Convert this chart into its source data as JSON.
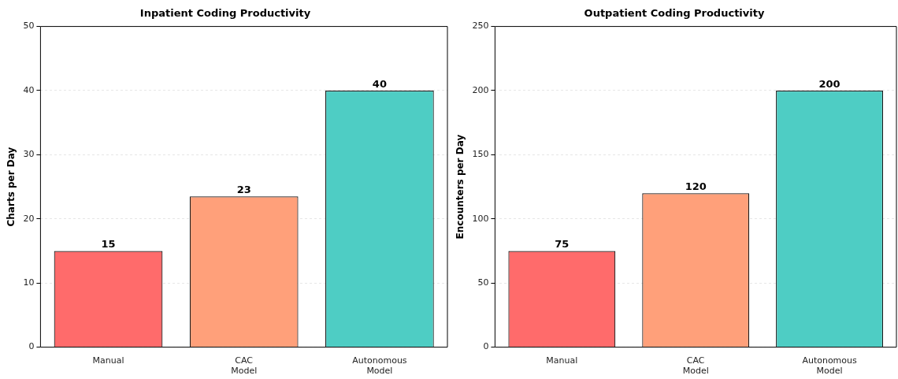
{
  "chart_data": [
    {
      "type": "bar",
      "title": "Inpatient Coding Productivity",
      "ylabel": "Charts per Day",
      "categories": [
        "Manual",
        "CAC Model",
        "Autonomous Model"
      ],
      "values": [
        15,
        23.5,
        40
      ],
      "value_labels": [
        "15",
        "23",
        "40"
      ],
      "colors": [
        "#ff6b6b",
        "#ffa07a",
        "#4ecdc4"
      ],
      "ylim": [
        0,
        50
      ],
      "yticks": [
        0,
        10,
        20,
        30,
        40,
        50
      ],
      "grid": "y"
    },
    {
      "type": "bar",
      "title": "Outpatient Coding Productivity",
      "ylabel": "Encounters per Day",
      "categories": [
        "Manual",
        "CAC Model",
        "Autonomous Model"
      ],
      "values": [
        75,
        120,
        200
      ],
      "value_labels": [
        "75",
        "120",
        "200"
      ],
      "colors": [
        "#ff6b6b",
        "#ffa07a",
        "#4ecdc4"
      ],
      "ylim": [
        0,
        250
      ],
      "yticks": [
        0,
        50,
        100,
        150,
        200,
        250
      ],
      "grid": "y"
    }
  ]
}
